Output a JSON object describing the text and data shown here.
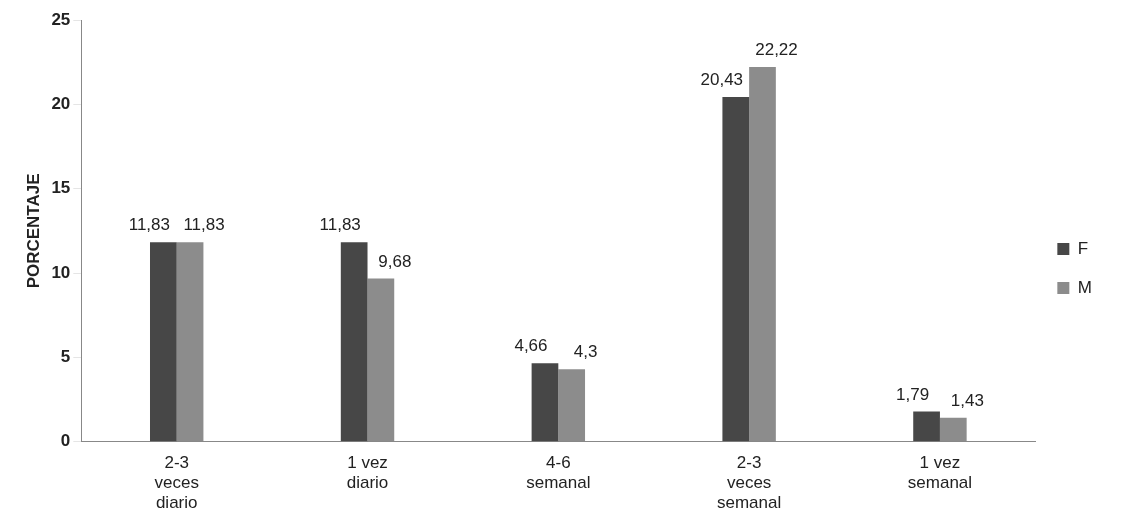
{
  "chart_data": {
    "type": "bar",
    "ylabel": "PORCENTAJE",
    "categories": [
      "2-3 veces diario",
      "1 vez diario",
      "4-6 semanal",
      "2-3 veces semanal",
      "1 vez semanal"
    ],
    "series": [
      {
        "name": "F",
        "color": "#474747",
        "values": [
          11.83,
          11.83,
          4.66,
          20.43,
          1.79
        ],
        "value_labels": [
          "11,83",
          "11,83",
          "4,66",
          "20,43",
          "1,79"
        ]
      },
      {
        "name": "M",
        "color": "#8c8c8c",
        "values": [
          11.83,
          9.68,
          4.3,
          22.22,
          1.43
        ],
        "value_labels": [
          "11,83",
          "9,68",
          "4,3",
          "22,22",
          "1,43"
        ]
      }
    ],
    "ylim": [
      0,
      25
    ],
    "yticks": [
      0,
      5,
      10,
      15,
      20,
      25
    ],
    "grid": false,
    "legend": "right"
  }
}
